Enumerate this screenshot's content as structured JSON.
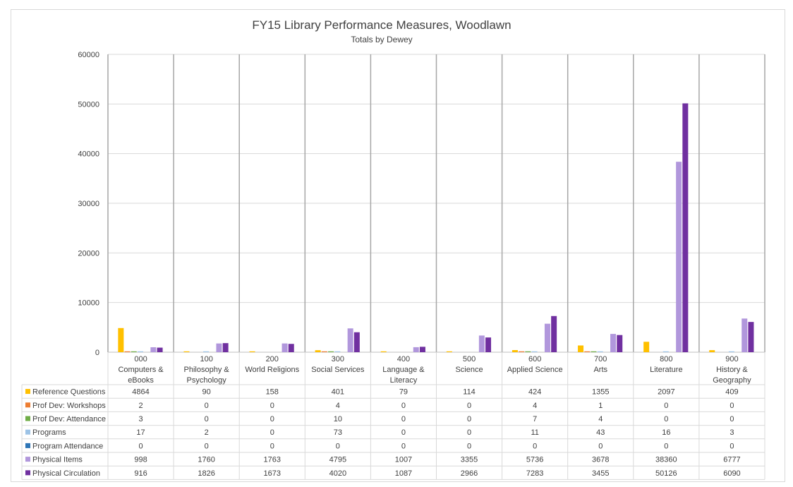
{
  "chart_data": {
    "type": "bar",
    "title": "FY15 Library Performance Measures, Woodlawn",
    "subtitle": "Totals by Dewey",
    "xlabel": "",
    "ylabel": "",
    "ylim": [
      0,
      60000
    ],
    "yticks": [
      "0",
      "10000",
      "20000",
      "30000",
      "40000",
      "50000",
      "60000"
    ],
    "grid": true,
    "legend": "data-table",
    "categories": [
      [
        "000",
        "Computers &",
        "eBooks"
      ],
      [
        "100",
        "Philosophy &",
        "Psychology"
      ],
      [
        "200",
        "World Religions"
      ],
      [
        "300",
        "Social Services"
      ],
      [
        "400",
        "Language &",
        "Literacy"
      ],
      [
        "500",
        "Science"
      ],
      [
        "600",
        "Applied Science"
      ],
      [
        "700",
        "Arts"
      ],
      [
        "800",
        "Literature"
      ],
      [
        "900",
        "History &",
        "Geography"
      ]
    ],
    "series": [
      {
        "name": "Reference Questions",
        "color": "#ffc000",
        "values": [
          4864,
          90,
          158,
          401,
          79,
          114,
          424,
          1355,
          2097,
          409
        ]
      },
      {
        "name": "Prof Dev: Workshops",
        "color": "#ed7d31",
        "values": [
          2,
          0,
          0,
          4,
          0,
          0,
          4,
          1,
          0,
          0
        ]
      },
      {
        "name": "Prof Dev: Attendance",
        "color": "#70ad47",
        "values": [
          3,
          0,
          0,
          10,
          0,
          0,
          7,
          4,
          0,
          0
        ]
      },
      {
        "name": "Programs",
        "color": "#9dc3e6",
        "values": [
          17,
          2,
          0,
          73,
          0,
          0,
          11,
          43,
          16,
          3
        ]
      },
      {
        "name": "Program Attendance",
        "color": "#2e75b6",
        "values": [
          0,
          0,
          0,
          0,
          0,
          0,
          0,
          0,
          0,
          0
        ]
      },
      {
        "name": "Physical Items",
        "color": "#b197dc",
        "values": [
          998,
          1760,
          1763,
          4795,
          1007,
          3355,
          5736,
          3678,
          38360,
          6777
        ]
      },
      {
        "name": "Physical Circulation",
        "color": "#7030a0",
        "values": [
          916,
          1826,
          1673,
          4020,
          1087,
          2966,
          7283,
          3455,
          50126,
          6090
        ]
      }
    ]
  }
}
